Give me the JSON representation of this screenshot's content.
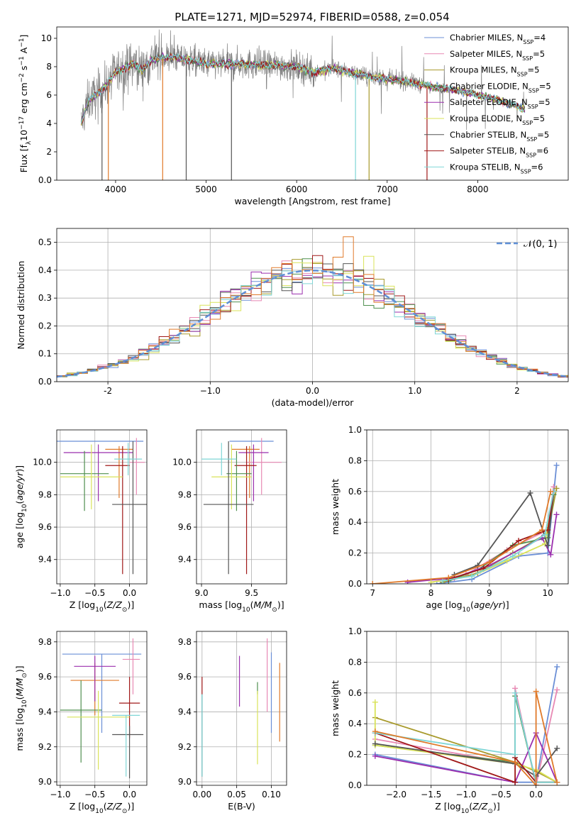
{
  "title": "PLATE=1271, MJD=52974, FIBERID=0588, z=0.054",
  "colors": [
    "#6b8fd6",
    "#e889b4",
    "#a89a2c",
    "#4f8f4f",
    "#9b2fae",
    "#d9e35a",
    "#555555",
    "#a01818",
    "#7fd6d6",
    "#e07a2a"
  ],
  "chart_data": [
    {
      "id": "spectrum",
      "type": "line",
      "xlabel": "wavelength [Angstrom, rest frame]",
      "ylabel": "Flux [f_λ 10^-17 erg cm^-2 s^-1 A^-1]",
      "xlim": [
        3350,
        9000
      ],
      "ylim": [
        0,
        10.8
      ],
      "xticks": [
        4000,
        5000,
        6000,
        7000,
        8000
      ],
      "yticks": [
        0,
        2,
        4,
        6,
        8,
        10
      ],
      "legend": "top-right",
      "series": [
        {
          "label": "Chabrier MILES, N",
          "sub": "SSP",
          "n": "=4"
        },
        {
          "label": "Salpeter MILES, N",
          "sub": "SSP",
          "n": "=5"
        },
        {
          "label": "Kroupa MILES, N",
          "sub": "SSP",
          "n": "=5"
        },
        {
          "label": "Chabrier ELODIE, N",
          "sub": "SSP",
          "n": "=5"
        },
        {
          "label": "Salpeter ELODIE, N",
          "sub": "SSP",
          "n": "=5"
        },
        {
          "label": "Kroupa ELODIE, N",
          "sub": "SSP",
          "n": "=5"
        },
        {
          "label": "Chabrier STELIB, N",
          "sub": "SSP",
          "n": "=5"
        },
        {
          "label": "Salpeter STELIB, N",
          "sub": "SSP",
          "n": "=6"
        },
        {
          "label": "Kroupa STELIB, N",
          "sub": "SSP",
          "n": "=6"
        }
      ],
      "continuum": [
        [
          3620,
          4.0
        ],
        [
          3700,
          5.6
        ],
        [
          3800,
          6.1
        ],
        [
          3900,
          6.7
        ],
        [
          4000,
          7.6
        ],
        [
          4100,
          7.9
        ],
        [
          4200,
          8.2
        ],
        [
          4300,
          7.8
        ],
        [
          4400,
          8.5
        ],
        [
          4600,
          8.7
        ],
        [
          4800,
          8.5
        ],
        [
          5000,
          8.2
        ],
        [
          5200,
          8.2
        ],
        [
          5400,
          8.2
        ],
        [
          5600,
          8.1
        ],
        [
          5800,
          8.1
        ],
        [
          6000,
          8.0
        ],
        [
          6200,
          7.6
        ],
        [
          6400,
          7.9
        ],
        [
          6600,
          7.6
        ],
        [
          6800,
          7.3
        ],
        [
          7000,
          7.1
        ],
        [
          7200,
          7.0
        ],
        [
          7400,
          6.7
        ],
        [
          7600,
          6.5
        ],
        [
          7800,
          6.3
        ],
        [
          8000,
          6.0
        ],
        [
          8200,
          5.7
        ],
        [
          8400,
          5.3
        ],
        [
          8520,
          5.0
        ]
      ]
    },
    {
      "id": "residuals",
      "type": "step",
      "xlabel": "(data-model)/error",
      "ylabel": "Normed distribution",
      "xlim": [
        -2.5,
        2.5
      ],
      "ylim": [
        0,
        0.55
      ],
      "xticks": [
        -2,
        -1,
        0,
        1,
        2
      ],
      "yticks": [
        0.0,
        0.1,
        0.2,
        0.3,
        0.4,
        0.5
      ],
      "legend": "𝒩(0, 1)",
      "bin_width": 0.1
    },
    {
      "id": "age_vs_Z",
      "type": "errorbar",
      "xlabel": "Z [log10(Z/Z⊙)]",
      "ylabel": "age [log10(age/yr)]",
      "xlim": [
        -1.05,
        0.25
      ],
      "ylim": [
        9.25,
        10.2
      ],
      "xticks": [
        -1.0,
        -0.5,
        0.0
      ],
      "yticks": [
        9.4,
        9.6,
        9.8,
        10.0
      ],
      "points": [
        {
          "x": -0.75,
          "xerr": [
            0.95,
            0.95
          ],
          "y": 10.13,
          "yerr": [
            0.0,
            0.0
          ],
          "c": 0
        },
        {
          "x": -0.15,
          "xerr": [
            0.2,
            0.2
          ],
          "y": 10.08,
          "yerr": [
            0.3,
            0.02
          ],
          "c": 9
        },
        {
          "x": 0.1,
          "xerr": [
            0.1,
            0.12
          ],
          "y": 10.0,
          "yerr": [
            0.2,
            0.15
          ],
          "c": 1
        },
        {
          "x": -0.45,
          "xerr": [
            0.5,
            0.5
          ],
          "y": 10.06,
          "yerr": [
            0.3,
            0.05
          ],
          "c": 4
        },
        {
          "x": -0.1,
          "xerr": [
            0.25,
            0.1
          ],
          "y": 9.98,
          "yerr": [
            0.67,
            0.12
          ],
          "c": 7
        },
        {
          "x": -0.65,
          "xerr": [
            0.35,
            0.35
          ],
          "y": 9.93,
          "yerr": [
            0.23,
            0.14
          ],
          "c": 3
        },
        {
          "x": -0.55,
          "xerr": [
            0.45,
            0.45
          ],
          "y": 9.91,
          "yerr": [
            0.2,
            0.2
          ],
          "c": 5
        },
        {
          "x": 0.05,
          "xerr": [
            0.3,
            0.3
          ],
          "y": 9.74,
          "yerr": [
            0.43,
            0.39
          ],
          "c": 6
        },
        {
          "x": -0.02,
          "xerr": [
            0.2,
            0.2
          ],
          "y": 10.02,
          "yerr": [
            0.1,
            0.1
          ],
          "c": 8
        }
      ]
    },
    {
      "id": "age_vs_mass",
      "type": "errorbar",
      "xlabel": "mass [log10(M/M⊙)]",
      "ylabel": "",
      "xlim": [
        8.95,
        9.85
      ],
      "ylim": [
        9.25,
        10.2
      ],
      "xticks": [
        9.0,
        9.5
      ],
      "yticks": [
        9.4,
        9.6,
        9.8,
        10.0
      ],
      "points": [
        {
          "x": 9.5,
          "xerr": [
            0.22,
            0.22
          ],
          "y": 10.13,
          "yerr": [
            0.0,
            0.0
          ],
          "c": 0
        },
        {
          "x": 9.48,
          "xerr": [
            0.18,
            0.1
          ],
          "y": 10.08,
          "yerr": [
            0.3,
            0.02
          ],
          "c": 9
        },
        {
          "x": 9.6,
          "xerr": [
            0.15,
            0.2
          ],
          "y": 10.0,
          "yerr": [
            0.2,
            0.15
          ],
          "c": 1
        },
        {
          "x": 9.52,
          "xerr": [
            0.15,
            0.15
          ],
          "y": 10.06,
          "yerr": [
            0.3,
            0.05
          ],
          "c": 4
        },
        {
          "x": 9.45,
          "xerr": [
            0.12,
            0.1
          ],
          "y": 9.98,
          "yerr": [
            0.67,
            0.12
          ],
          "c": 7
        },
        {
          "x": 9.35,
          "xerr": [
            0.1,
            0.15
          ],
          "y": 9.93,
          "yerr": [
            0.23,
            0.14
          ],
          "c": 3
        },
        {
          "x": 9.3,
          "xerr": [
            0.2,
            0.2
          ],
          "y": 9.91,
          "yerr": [
            0.2,
            0.2
          ],
          "c": 5
        },
        {
          "x": 9.27,
          "xerr": [
            0.25,
            0.25
          ],
          "y": 9.74,
          "yerr": [
            0.43,
            0.39
          ],
          "c": 6
        },
        {
          "x": 9.2,
          "xerr": [
            0.2,
            0.15
          ],
          "y": 10.02,
          "yerr": [
            0.1,
            0.1
          ],
          "c": 8
        }
      ]
    },
    {
      "id": "weight_vs_age",
      "type": "line",
      "xlabel": "age [log10(age/yr)]",
      "ylabel": "mass weight",
      "xlim": [
        6.9,
        10.35
      ],
      "ylim": [
        0,
        1.0
      ],
      "xticks": [
        7,
        8,
        9,
        10
      ],
      "yticks": [
        0.0,
        0.2,
        0.4,
        0.6,
        0.8,
        1.0
      ],
      "series": [
        {
          "c": 0,
          "x": [
            8.1,
            8.7,
            9.5,
            10.0,
            10.15
          ],
          "y": [
            0.0,
            0.03,
            0.18,
            0.2,
            0.77
          ]
        },
        {
          "c": 1,
          "x": [
            8.0,
            8.6,
            9.3,
            10.0,
            10.1
          ],
          "y": [
            0.01,
            0.06,
            0.22,
            0.35,
            0.63
          ]
        },
        {
          "c": 2,
          "x": [
            8.2,
            8.8,
            9.4,
            10.0,
            10.15
          ],
          "y": [
            0.01,
            0.07,
            0.2,
            0.33,
            0.62
          ]
        },
        {
          "c": 3,
          "x": [
            8.3,
            8.8,
            9.4,
            10.0,
            10.1
          ],
          "y": [
            0.02,
            0.09,
            0.25,
            0.3,
            0.58
          ]
        },
        {
          "c": 4,
          "x": [
            7.6,
            8.4,
            9.0,
            9.9,
            10.05,
            10.15
          ],
          "y": [
            0.01,
            0.04,
            0.12,
            0.3,
            0.19,
            0.45
          ]
        },
        {
          "c": 5,
          "x": [
            8.0,
            8.7,
            9.3,
            9.95,
            10.1
          ],
          "y": [
            0.01,
            0.05,
            0.15,
            0.26,
            0.6
          ]
        },
        {
          "c": 6,
          "x": [
            8.4,
            8.8,
            9.7,
            10.0,
            10.1
          ],
          "y": [
            0.06,
            0.12,
            0.59,
            0.25,
            0.6
          ]
        },
        {
          "c": 7,
          "x": [
            8.3,
            8.9,
            9.5,
            10.0,
            10.1
          ],
          "y": [
            0.03,
            0.1,
            0.28,
            0.35,
            0.6
          ]
        },
        {
          "c": 8,
          "x": [
            8.2,
            8.7,
            9.4,
            9.95,
            10.1
          ],
          "y": [
            0.02,
            0.05,
            0.18,
            0.32,
            0.6
          ]
        },
        {
          "c": 9,
          "x": [
            7.0,
            8.3,
            9.0,
            9.9,
            10.05
          ],
          "y": [
            0.0,
            0.04,
            0.14,
            0.35,
            0.6
          ]
        }
      ]
    },
    {
      "id": "mass_vs_Z",
      "type": "errorbar",
      "xlabel": "Z [log10(Z/Z⊙)]",
      "ylabel": "mass [log10(M/M⊙)]",
      "xlim": [
        -1.05,
        0.25
      ],
      "ylim": [
        8.98,
        9.86
      ],
      "xticks": [
        -1.0,
        -0.5,
        0.0
      ],
      "yticks": [
        9.0,
        9.2,
        9.4,
        9.6,
        9.8
      ],
      "points": [
        {
          "x": -0.4,
          "xerr": [
            0.57,
            0.57
          ],
          "y": 9.73,
          "yerr": [
            0.45,
            0.0
          ],
          "c": 0
        },
        {
          "x": -0.5,
          "xerr": [
            0.35,
            0.35
          ],
          "y": 9.58,
          "yerr": [
            0.2,
            0.1
          ],
          "c": 9
        },
        {
          "x": 0.05,
          "xerr": [
            0.15,
            0.1
          ],
          "y": 9.7,
          "yerr": [
            0.2,
            0.12
          ],
          "c": 1
        },
        {
          "x": -0.5,
          "xerr": [
            0.3,
            0.3
          ],
          "y": 9.66,
          "yerr": [
            0.2,
            0.06
          ],
          "c": 4
        },
        {
          "x": 0.0,
          "xerr": [
            0.15,
            0.15
          ],
          "y": 9.45,
          "yerr": [
            0.2,
            0.15
          ],
          "c": 7
        },
        {
          "x": -0.7,
          "xerr": [
            0.3,
            0.3
          ],
          "y": 9.41,
          "yerr": [
            0.3,
            0.17
          ],
          "c": 3
        },
        {
          "x": -0.45,
          "xerr": [
            0.45,
            0.45
          ],
          "y": 9.37,
          "yerr": [
            0.3,
            0.15
          ],
          "c": 5
        },
        {
          "x": 0.0,
          "xerr": [
            0.25,
            0.2
          ],
          "y": 9.27,
          "yerr": [
            0.25,
            0.05
          ],
          "c": 6
        },
        {
          "x": -0.05,
          "xerr": [
            0.2,
            0.2
          ],
          "y": 9.38,
          "yerr": [
            0.35,
            0.0
          ],
          "c": 8
        }
      ]
    },
    {
      "id": "mass_vs_ebv",
      "type": "errorbar",
      "xlabel": "E(B-V)",
      "ylabel": "",
      "xlim": [
        -0.008,
        0.122
      ],
      "ylim": [
        8.98,
        9.86
      ],
      "xticks": [
        0.0,
        0.05,
        0.1
      ],
      "yticks": [
        9.0,
        9.2,
        9.4,
        9.6,
        9.8
      ],
      "points": [
        {
          "x": 0.1,
          "xerr": [
            0,
            0
          ],
          "y": 9.5,
          "yerr": [
            0.22,
            0.24
          ],
          "c": 0
        },
        {
          "x": 0.112,
          "xerr": [
            0,
            0
          ],
          "y": 9.45,
          "yerr": [
            0.22,
            0.23
          ],
          "c": 9
        },
        {
          "x": 0.094,
          "xerr": [
            0,
            0
          ],
          "y": 9.6,
          "yerr": [
            0.2,
            0.22
          ],
          "c": 1
        },
        {
          "x": 0.054,
          "xerr": [
            0,
            0
          ],
          "y": 9.6,
          "yerr": [
            0.17,
            0.12
          ],
          "c": 4
        },
        {
          "x": 0.0,
          "xerr": [
            0,
            0
          ],
          "y": 9.5,
          "yerr": [
            0.0,
            0.1
          ],
          "c": 7
        },
        {
          "x": 0.08,
          "xerr": [
            0,
            0
          ],
          "y": 9.5,
          "yerr": [
            0.0,
            0.07
          ],
          "c": 3
        },
        {
          "x": 0.08,
          "xerr": [
            0,
            0
          ],
          "y": 9.3,
          "yerr": [
            0.2,
            0.22
          ],
          "c": 5
        },
        {
          "x": 0.0,
          "xerr": [
            0,
            0
          ],
          "y": 9.25,
          "yerr": [
            0.22,
            0.25
          ],
          "c": 6
        },
        {
          "x": 0.0,
          "xerr": [
            0,
            0
          ],
          "y": 9.25,
          "yerr": [
            0.22,
            0.25
          ],
          "c": 8
        }
      ]
    },
    {
      "id": "weight_vs_Z",
      "type": "line",
      "xlabel": "Z [log10(Z/Z⊙)]",
      "ylabel": "mass weight",
      "xlim": [
        -2.42,
        0.46
      ],
      "ylim": [
        0,
        1.0
      ],
      "xticks": [
        -2.0,
        -1.5,
        -1.0,
        -0.5,
        0.0
      ],
      "yticks": [
        0.0,
        0.2,
        0.4,
        0.6,
        0.8,
        1.0
      ],
      "series": [
        {
          "c": 0,
          "x": [
            -2.3,
            -0.3,
            0.0,
            0.3
          ],
          "y": [
            0.2,
            0.02,
            0.02,
            0.77
          ]
        },
        {
          "c": 1,
          "x": [
            -2.3,
            -0.3,
            -0.3,
            0.0,
            0.3
          ],
          "y": [
            0.3,
            0.14,
            0.63,
            0.0,
            0.62
          ]
        },
        {
          "c": 2,
          "x": [
            -2.3,
            -0.3,
            0.0,
            0.3
          ],
          "y": [
            0.44,
            0.15,
            0.09,
            0.02
          ]
        },
        {
          "c": 3,
          "x": [
            -2.3,
            -0.3,
            -0.3,
            0.0,
            0.3
          ],
          "y": [
            0.26,
            0.15,
            0.58,
            0.02,
            0.02
          ]
        },
        {
          "c": 4,
          "x": [
            -2.3,
            -0.3,
            0.0,
            0.3
          ],
          "y": [
            0.19,
            0.02,
            0.34,
            0.02
          ]
        },
        {
          "c": 5,
          "x": [
            -2.3,
            -2.3,
            -0.3,
            0.0,
            0.3
          ],
          "y": [
            0.54,
            0.26,
            0.14,
            0.1,
            0.02
          ]
        },
        {
          "c": 6,
          "x": [
            -2.3,
            -0.3,
            0.0,
            0.3
          ],
          "y": [
            0.27,
            0.14,
            0.06,
            0.24
          ]
        },
        {
          "c": 7,
          "x": [
            -2.3,
            -0.3,
            -0.3,
            0.0,
            0.3
          ],
          "y": [
            0.34,
            0.02,
            0.18,
            0.02,
            0.02
          ]
        },
        {
          "c": 8,
          "x": [
            -2.3,
            -0.3,
            -0.3,
            0.0,
            0.3
          ],
          "y": [
            0.34,
            0.2,
            0.6,
            0.02,
            0.02
          ]
        },
        {
          "c": 9,
          "x": [
            -2.3,
            -0.3,
            0.0,
            0.0,
            0.3
          ],
          "y": [
            0.35,
            0.15,
            0.0,
            0.61,
            0.02
          ]
        }
      ]
    }
  ]
}
